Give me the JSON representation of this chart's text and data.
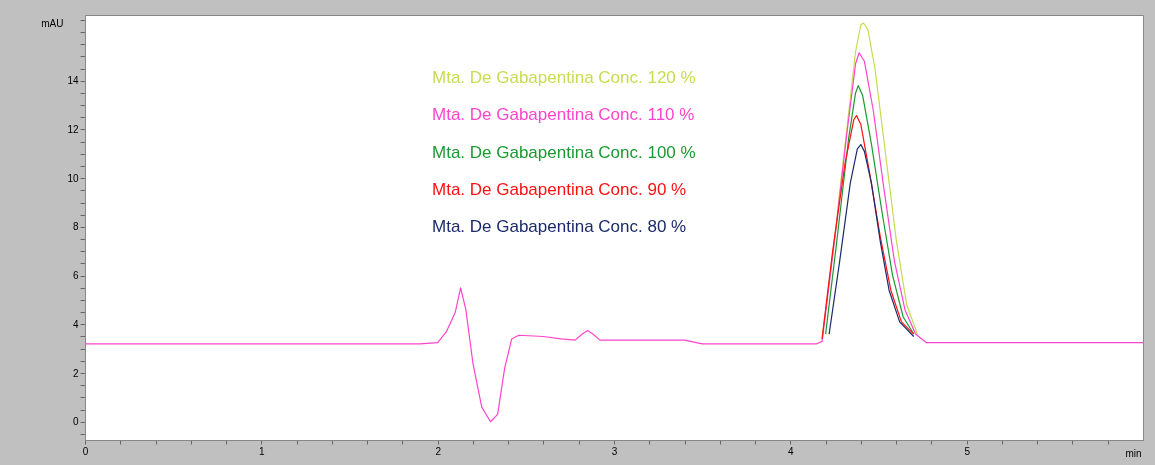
{
  "chart_data": {
    "type": "line",
    "xlabel": "min",
    "ylabel": "mAU",
    "xlim": [
      0,
      6.0
    ],
    "ylim": [
      -0.75,
      16.7
    ],
    "xticks": [
      0,
      {
        "value": 0.2,
        "label": null
      },
      {
        "value": 0.4,
        "label": null
      },
      {
        "value": 0.6,
        "label": null
      },
      {
        "value": 0.8,
        "label": null
      },
      1,
      {
        "value": 1.2,
        "label": null
      },
      {
        "value": 1.4,
        "label": null
      },
      {
        "value": 1.6,
        "label": null
      },
      {
        "value": 1.8,
        "label": null
      },
      2,
      {
        "value": 2.2,
        "label": null
      },
      {
        "value": 2.4,
        "label": null
      },
      {
        "value": 2.6,
        "label": null
      },
      {
        "value": 2.8,
        "label": null
      },
      3,
      {
        "value": 3.2,
        "label": null
      },
      {
        "value": 3.4,
        "label": null
      },
      {
        "value": 3.6,
        "label": null
      },
      {
        "value": 3.8,
        "label": null
      },
      4,
      {
        "value": 4.2,
        "label": null
      },
      {
        "value": 4.4,
        "label": null
      },
      {
        "value": 4.6,
        "label": null
      },
      {
        "value": 4.8,
        "label": null
      },
      5,
      {
        "value": 5.2,
        "label": null
      },
      {
        "value": 5.4,
        "label": null
      },
      {
        "value": 5.6,
        "label": null
      },
      {
        "value": 5.8,
        "label": null
      }
    ],
    "yticks": [
      {
        "value": -0.5,
        "label": null
      },
      0,
      {
        "value": 0.5,
        "label": null
      },
      {
        "value": 1,
        "label": null
      },
      {
        "value": 1.5,
        "label": null
      },
      2,
      {
        "value": 2.5,
        "label": null
      },
      {
        "value": 3,
        "label": null
      },
      {
        "value": 3.5,
        "label": null
      },
      4,
      {
        "value": 4.5,
        "label": null
      },
      {
        "value": 5,
        "label": null
      },
      {
        "value": 5.5,
        "label": null
      },
      6,
      {
        "value": 6.5,
        "label": null
      },
      {
        "value": 7,
        "label": null
      },
      {
        "value": 7.5,
        "label": null
      },
      8,
      {
        "value": 8.5,
        "label": null
      },
      {
        "value": 9,
        "label": null
      },
      {
        "value": 9.5,
        "label": null
      },
      10,
      {
        "value": 10.5,
        "label": null
      },
      {
        "value": 11,
        "label": null
      },
      {
        "value": 11.5,
        "label": null
      },
      12,
      {
        "value": 12.5,
        "label": null
      },
      {
        "value": 13,
        "label": null
      },
      {
        "value": 13.5,
        "label": null
      },
      14,
      {
        "value": 14.5,
        "label": null
      },
      {
        "value": 15,
        "label": null
      },
      {
        "value": 15.5,
        "label": null
      },
      {
        "value": 16,
        "label": null
      },
      {
        "value": 16.5,
        "label": null
      }
    ],
    "grid": false,
    "legend": "top",
    "marker": "none",
    "line_style": "solid",
    "series": [
      {
        "name": "Mta. De Gabapentina Conc. 120 %",
        "color": "#c8dc50",
        "x": [
          4.18,
          4.25,
          4.32,
          4.37,
          4.4,
          4.415,
          4.44,
          4.48,
          4.54,
          4.6,
          4.66,
          4.72
        ],
        "values": [
          3.4,
          7.5,
          12.0,
          15.2,
          16.3,
          16.37,
          16.1,
          14.5,
          11.0,
          7.5,
          4.8,
          3.6
        ]
      },
      {
        "name": "Mta. De Gabapentina Conc. 110 %",
        "color": "#ff44cc",
        "x": [
          0,
          1.9,
          2.0,
          2.05,
          2.1,
          2.13,
          2.16,
          2.2,
          2.25,
          2.3,
          2.34,
          2.38,
          2.42,
          2.46,
          2.6,
          2.7,
          2.78,
          2.82,
          2.85,
          2.88,
          2.92,
          3.0,
          3.4,
          3.5,
          4.15,
          4.18,
          4.25,
          4.32,
          4.37,
          4.39,
          4.42,
          4.47,
          4.53,
          4.59,
          4.65,
          4.71,
          4.77,
          6.0
        ],
        "values": [
          3.2,
          3.2,
          3.25,
          3.7,
          4.5,
          5.5,
          4.6,
          2.4,
          0.6,
          0.0,
          0.3,
          2.2,
          3.4,
          3.55,
          3.5,
          3.4,
          3.35,
          3.6,
          3.75,
          3.6,
          3.35,
          3.35,
          3.35,
          3.2,
          3.2,
          3.3,
          7.4,
          11.8,
          14.7,
          15.15,
          14.8,
          12.8,
          9.6,
          6.6,
          4.6,
          3.6,
          3.25,
          3.25
        ]
      },
      {
        "name": "Mta. De Gabapentina Conc. 100 %",
        "color": "#1a9a30",
        "x": [
          4.2,
          4.26,
          4.33,
          4.37,
          4.385,
          4.41,
          4.46,
          4.52,
          4.58,
          4.64,
          4.7
        ],
        "values": [
          3.6,
          7.2,
          11.6,
          13.5,
          13.8,
          13.4,
          11.4,
          8.6,
          6.0,
          4.3,
          3.6
        ]
      },
      {
        "name": "Mta. De Gabapentina Conc. 90 %",
        "color": "#ff1010",
        "x": [
          4.18,
          4.24,
          4.31,
          4.36,
          4.375,
          4.4,
          4.45,
          4.51,
          4.57,
          4.63,
          4.7
        ],
        "values": [
          3.4,
          7.0,
          10.6,
          12.4,
          12.57,
          12.2,
          10.2,
          7.6,
          5.4,
          4.1,
          3.6
        ]
      },
      {
        "name": "Mta. De Gabapentina Conc. 80 %",
        "color": "#1a2a6a",
        "x": [
          4.22,
          4.28,
          4.34,
          4.38,
          4.4,
          4.42,
          4.46,
          4.51,
          4.56,
          4.62,
          4.7
        ],
        "values": [
          3.6,
          6.6,
          9.8,
          11.2,
          11.38,
          11.1,
          9.8,
          7.4,
          5.4,
          4.1,
          3.5
        ]
      }
    ]
  }
}
